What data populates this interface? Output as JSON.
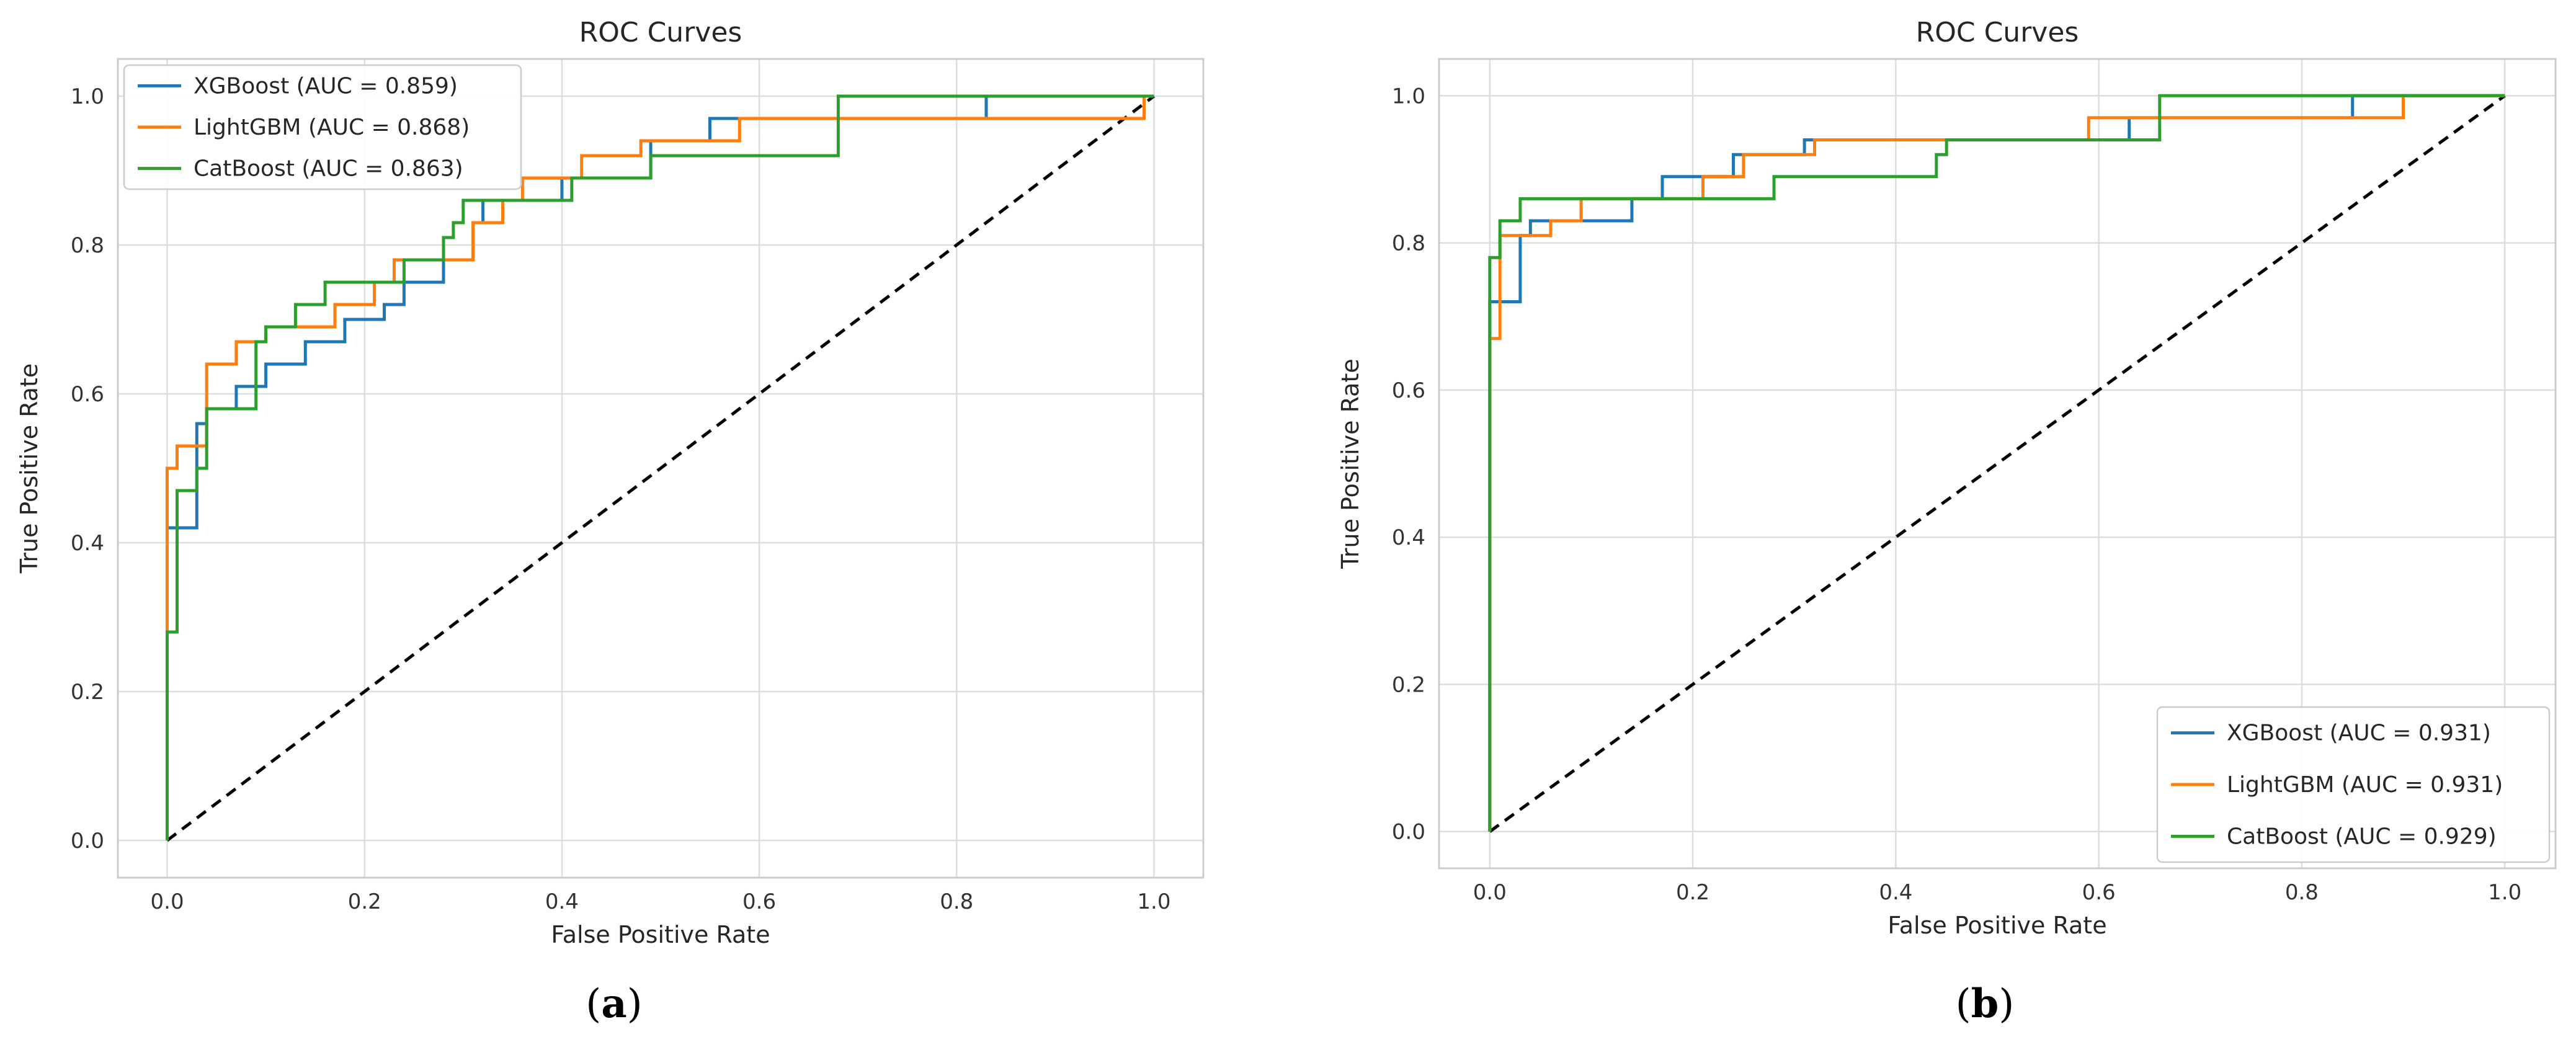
{
  "colors": {
    "xgboost": "#1f77b4",
    "lightgbm": "#ff7f0e",
    "catboost": "#2ca02c",
    "diagonal": "#000000",
    "grid": "#dddddd",
    "frame": "#cccccc"
  },
  "chart_data": [
    {
      "type": "line",
      "panel_label": "a",
      "title": "ROC Curves",
      "xlabel": "False Positive Rate",
      "ylabel": "True Positive Rate",
      "xlim": [
        -0.05,
        1.05
      ],
      "ylim": [
        -0.05,
        1.05
      ],
      "xticks": [
        "0.0",
        "0.2",
        "0.4",
        "0.6",
        "0.8",
        "1.0"
      ],
      "yticks": [
        "0.0",
        "0.2",
        "0.4",
        "0.6",
        "0.8",
        "1.0"
      ],
      "grid": true,
      "legend_position": "upper-left",
      "diagonal": [
        [
          0,
          0
        ],
        [
          1,
          1
        ]
      ],
      "series": [
        {
          "name": "XGBoost (AUC = 0.859)",
          "key": "xgboost",
          "points": [
            [
              0,
              0
            ],
            [
              0,
              0.28
            ],
            [
              0,
              0.42
            ],
            [
              0.03,
              0.42
            ],
            [
              0.03,
              0.56
            ],
            [
              0.04,
              0.56
            ],
            [
              0.04,
              0.58
            ],
            [
              0.07,
              0.58
            ],
            [
              0.07,
              0.61
            ],
            [
              0.1,
              0.61
            ],
            [
              0.1,
              0.64
            ],
            [
              0.14,
              0.64
            ],
            [
              0.14,
              0.67
            ],
            [
              0.18,
              0.67
            ],
            [
              0.18,
              0.7
            ],
            [
              0.22,
              0.7
            ],
            [
              0.22,
              0.72
            ],
            [
              0.24,
              0.72
            ],
            [
              0.24,
              0.75
            ],
            [
              0.28,
              0.75
            ],
            [
              0.28,
              0.78
            ],
            [
              0.31,
              0.78
            ],
            [
              0.31,
              0.83
            ],
            [
              0.32,
              0.83
            ],
            [
              0.32,
              0.86
            ],
            [
              0.4,
              0.86
            ],
            [
              0.4,
              0.89
            ],
            [
              0.49,
              0.89
            ],
            [
              0.49,
              0.94
            ],
            [
              0.55,
              0.94
            ],
            [
              0.55,
              0.97
            ],
            [
              0.83,
              0.97
            ],
            [
              0.83,
              1
            ],
            [
              1,
              1
            ]
          ]
        },
        {
          "name": "LightGBM (AUC = 0.868)",
          "key": "lightgbm",
          "points": [
            [
              0,
              0
            ],
            [
              0,
              0.28
            ],
            [
              0,
              0.5
            ],
            [
              0.01,
              0.5
            ],
            [
              0.01,
              0.53
            ],
            [
              0.04,
              0.53
            ],
            [
              0.04,
              0.64
            ],
            [
              0.07,
              0.64
            ],
            [
              0.07,
              0.67
            ],
            [
              0.1,
              0.67
            ],
            [
              0.1,
              0.69
            ],
            [
              0.17,
              0.69
            ],
            [
              0.17,
              0.72
            ],
            [
              0.21,
              0.72
            ],
            [
              0.21,
              0.75
            ],
            [
              0.23,
              0.75
            ],
            [
              0.23,
              0.78
            ],
            [
              0.31,
              0.78
            ],
            [
              0.31,
              0.83
            ],
            [
              0.34,
              0.83
            ],
            [
              0.34,
              0.86
            ],
            [
              0.36,
              0.86
            ],
            [
              0.36,
              0.89
            ],
            [
              0.42,
              0.89
            ],
            [
              0.42,
              0.92
            ],
            [
              0.48,
              0.92
            ],
            [
              0.48,
              0.94
            ],
            [
              0.58,
              0.94
            ],
            [
              0.58,
              0.97
            ],
            [
              0.99,
              0.97
            ],
            [
              0.99,
              1
            ],
            [
              1,
              1
            ]
          ]
        },
        {
          "name": "CatBoost (AUC = 0.863)",
          "key": "catboost",
          "points": [
            [
              0,
              0
            ],
            [
              0,
              0.28
            ],
            [
              0.01,
              0.28
            ],
            [
              0.01,
              0.47
            ],
            [
              0.03,
              0.47
            ],
            [
              0.03,
              0.5
            ],
            [
              0.04,
              0.5
            ],
            [
              0.04,
              0.58
            ],
            [
              0.09,
              0.58
            ],
            [
              0.09,
              0.67
            ],
            [
              0.1,
              0.67
            ],
            [
              0.1,
              0.69
            ],
            [
              0.13,
              0.69
            ],
            [
              0.13,
              0.72
            ],
            [
              0.16,
              0.72
            ],
            [
              0.16,
              0.75
            ],
            [
              0.24,
              0.75
            ],
            [
              0.24,
              0.78
            ],
            [
              0.28,
              0.78
            ],
            [
              0.28,
              0.81
            ],
            [
              0.29,
              0.81
            ],
            [
              0.29,
              0.83
            ],
            [
              0.3,
              0.83
            ],
            [
              0.3,
              0.86
            ],
            [
              0.41,
              0.86
            ],
            [
              0.41,
              0.89
            ],
            [
              0.49,
              0.89
            ],
            [
              0.49,
              0.92
            ],
            [
              0.68,
              0.92
            ],
            [
              0.68,
              1
            ],
            [
              1,
              1
            ]
          ]
        }
      ]
    },
    {
      "type": "line",
      "panel_label": "b",
      "title": "ROC Curves",
      "xlabel": "False Positive Rate",
      "ylabel": "True Positive Rate",
      "xlim": [
        -0.05,
        1.05
      ],
      "ylim": [
        -0.05,
        1.05
      ],
      "xticks": [
        "0.0",
        "0.2",
        "0.4",
        "0.6",
        "0.8",
        "1.0"
      ],
      "yticks": [
        "0.0",
        "0.2",
        "0.4",
        "0.6",
        "0.8",
        "1.0"
      ],
      "grid": true,
      "legend_position": "lower-right",
      "diagonal": [
        [
          0,
          0
        ],
        [
          1,
          1
        ]
      ],
      "series": [
        {
          "name": "XGBoost (AUC = 0.931)",
          "key": "xgboost",
          "points": [
            [
              0,
              0
            ],
            [
              0,
              0.67
            ],
            [
              0,
              0.72
            ],
            [
              0.03,
              0.72
            ],
            [
              0.03,
              0.81
            ],
            [
              0.04,
              0.81
            ],
            [
              0.04,
              0.83
            ],
            [
              0.14,
              0.83
            ],
            [
              0.14,
              0.86
            ],
            [
              0.17,
              0.86
            ],
            [
              0.17,
              0.89
            ],
            [
              0.24,
              0.89
            ],
            [
              0.24,
              0.92
            ],
            [
              0.31,
              0.92
            ],
            [
              0.31,
              0.94
            ],
            [
              0.63,
              0.94
            ],
            [
              0.63,
              0.97
            ],
            [
              0.85,
              0.97
            ],
            [
              0.85,
              1
            ],
            [
              1,
              1
            ]
          ]
        },
        {
          "name": "LightGBM (AUC = 0.931)",
          "key": "lightgbm",
          "points": [
            [
              0,
              0
            ],
            [
              0,
              0.67
            ],
            [
              0.01,
              0.67
            ],
            [
              0.01,
              0.81
            ],
            [
              0.06,
              0.81
            ],
            [
              0.06,
              0.83
            ],
            [
              0.09,
              0.83
            ],
            [
              0.09,
              0.86
            ],
            [
              0.21,
              0.86
            ],
            [
              0.21,
              0.89
            ],
            [
              0.25,
              0.89
            ],
            [
              0.25,
              0.92
            ],
            [
              0.32,
              0.92
            ],
            [
              0.32,
              0.94
            ],
            [
              0.59,
              0.94
            ],
            [
              0.59,
              0.97
            ],
            [
              0.9,
              0.97
            ],
            [
              0.9,
              1
            ],
            [
              1,
              1
            ]
          ]
        },
        {
          "name": "CatBoost (AUC = 0.929)",
          "key": "catboost",
          "points": [
            [
              0,
              0
            ],
            [
              0,
              0.78
            ],
            [
              0.01,
              0.78
            ],
            [
              0.01,
              0.83
            ],
            [
              0.03,
              0.83
            ],
            [
              0.03,
              0.86
            ],
            [
              0.28,
              0.86
            ],
            [
              0.28,
              0.89
            ],
            [
              0.44,
              0.89
            ],
            [
              0.44,
              0.92
            ],
            [
              0.45,
              0.92
            ],
            [
              0.45,
              0.94
            ],
            [
              0.66,
              0.94
            ],
            [
              0.66,
              1
            ],
            [
              1,
              1
            ]
          ]
        }
      ]
    }
  ]
}
